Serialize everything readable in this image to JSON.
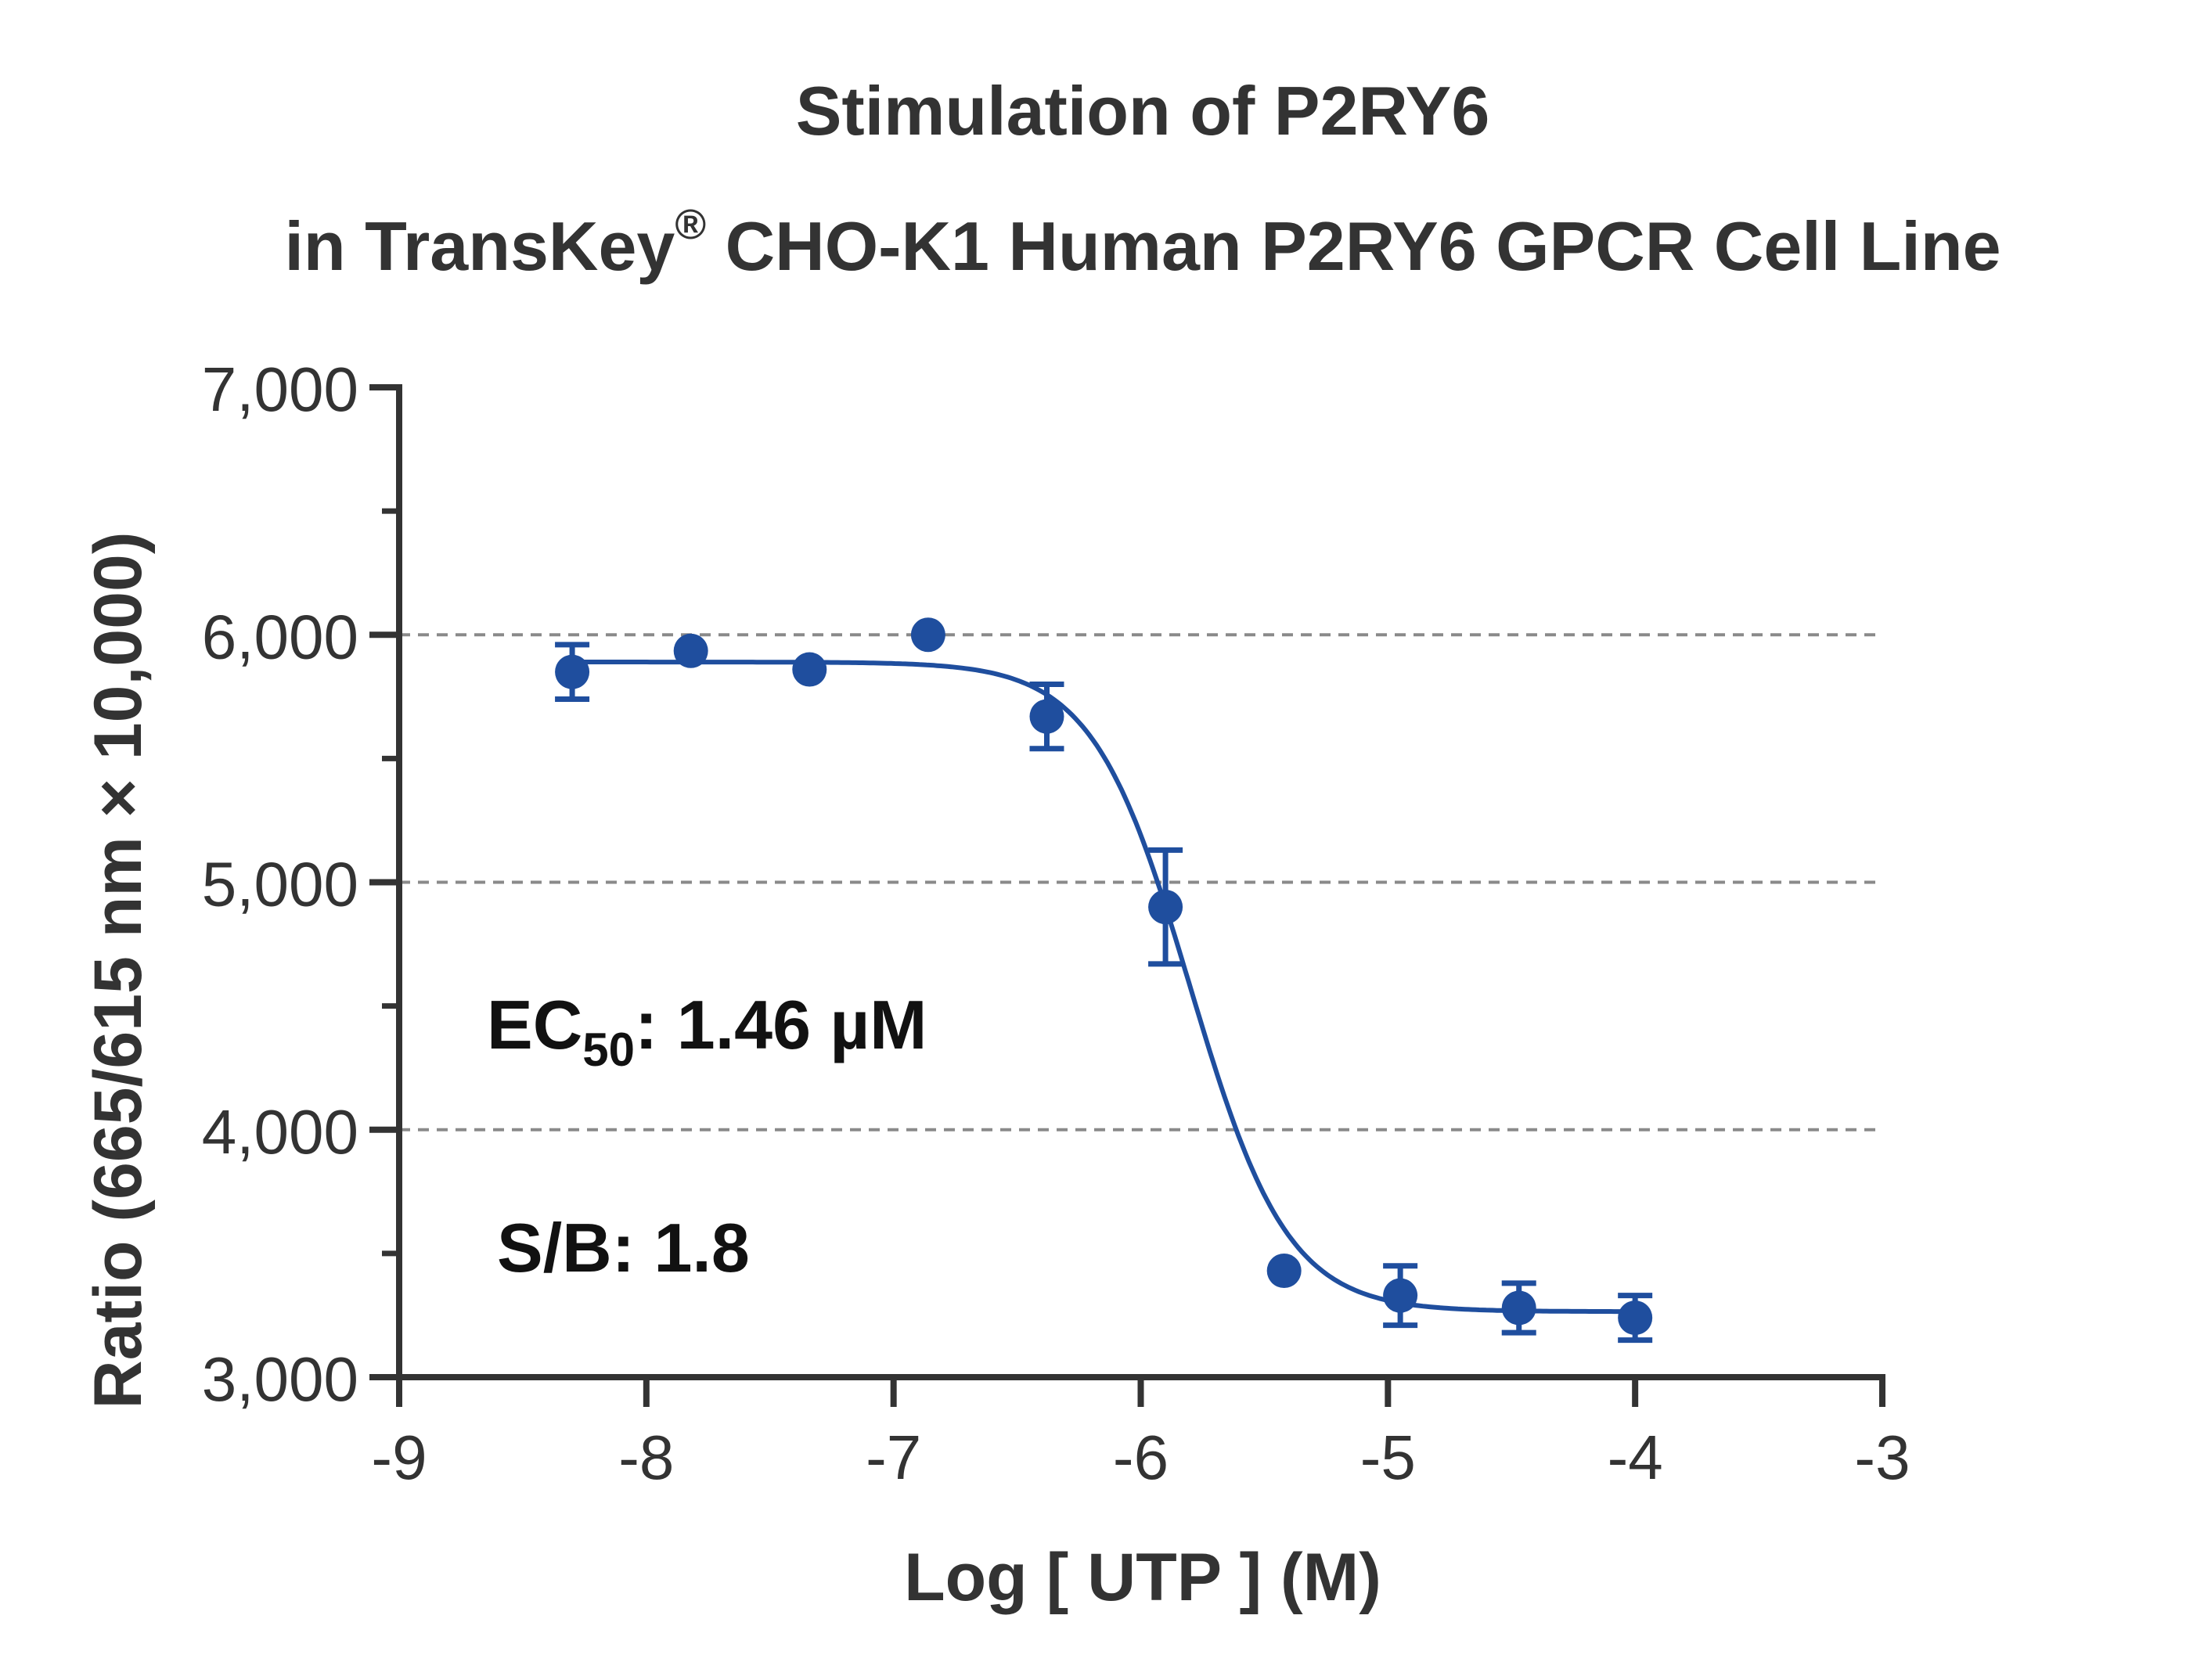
{
  "chart_data": {
    "type": "scatter",
    "title_line1": "Stimulation of  P2RY6",
    "title_line2_a": "in TransKey",
    "title_line2_reg": "®",
    "title_line2_b": " CHO-K1 Human  P2RY6 GPCR Cell Line",
    "xlabel": "Log [ UTP ]  (M)",
    "ylabel": "Ratio (665/615 nm × 10,000)",
    "xlim": [
      -9,
      -3
    ],
    "ylim": [
      3000,
      7000
    ],
    "x_ticks": [
      -9,
      -8,
      -7,
      -6,
      -5,
      -4,
      -3
    ],
    "x_tick_labels": [
      "-9",
      "-8",
      "-7",
      "-6",
      "-5",
      "-4",
      "-3"
    ],
    "y_ticks": [
      3000,
      4000,
      5000,
      6000,
      7000
    ],
    "y_tick_labels": [
      "3,000",
      "4,000",
      "5,000",
      "6,000",
      "7,000"
    ],
    "y_minor_ticks": [
      3500,
      4500,
      5500,
      6500
    ],
    "grid_y_dashed": [
      4000,
      5000,
      6000
    ],
    "series": [
      {
        "color": "#1f4e9e",
        "x": [
          -8.3,
          -7.82,
          -7.34,
          -6.86,
          -6.38,
          -5.9,
          -5.42,
          -4.95,
          -4.47,
          -4.0
        ],
        "y": [
          5850,
          5935,
          5860,
          6000,
          5670,
          4900,
          3430,
          3330,
          3280,
          3240
        ],
        "error": [
          110,
          0,
          0,
          0,
          130,
          230,
          0,
          120,
          100,
          90
        ]
      }
    ],
    "fit": {
      "type": "four-parameter logistic",
      "top": 5890,
      "bottom": 3265,
      "logEC50": -5.8,
      "hill": -2.2
    },
    "annotations": {
      "ec50_prefix": "EC",
      "ec50_sub": "50",
      "ec50_value": ": 1.46 µM",
      "sb_text": "S/B: 1.8"
    }
  }
}
